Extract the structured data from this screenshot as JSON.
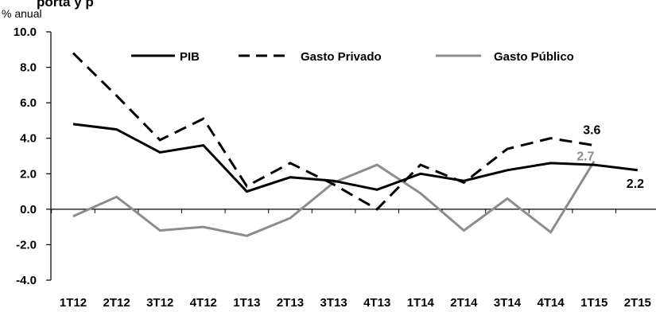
{
  "chart_data": {
    "type": "line",
    "title": "",
    "title_fragment": "porta y p",
    "ylabel": "% anual",
    "ylim": [
      -4.0,
      10.0
    ],
    "yticks": [
      "10.0",
      "8.0",
      "6.0",
      "4.0",
      "2.0",
      "0.0",
      "-2.0",
      "-4.0"
    ],
    "ytick_values": [
      10,
      8,
      6,
      4,
      2,
      0,
      -2,
      -4
    ],
    "categories": [
      "1T12",
      "2T12",
      "3T12",
      "4T12",
      "1T13",
      "2T13",
      "3T13",
      "4T13",
      "1T14",
      "2T14",
      "3T14",
      "4T14",
      "1T15",
      "2T15"
    ],
    "grid": false,
    "legend_position": "top",
    "series": [
      {
        "name": "PIB",
        "style": "solid",
        "color": "#000000",
        "values": [
          4.8,
          4.5,
          3.2,
          3.6,
          1.0,
          1.8,
          1.6,
          1.1,
          2.0,
          1.6,
          2.2,
          2.6,
          2.5,
          2.2
        ]
      },
      {
        "name": "Gasto Privado",
        "style": "dashed",
        "color": "#000000",
        "values": [
          8.8,
          6.4,
          3.9,
          5.1,
          1.3,
          2.6,
          1.4,
          0.0,
          2.5,
          1.5,
          3.4,
          4.0,
          3.6,
          null
        ]
      },
      {
        "name": "Gasto Público",
        "style": "solid",
        "color": "#8c8c8c",
        "values": [
          -0.4,
          0.7,
          -1.2,
          -1.0,
          -1.5,
          -0.5,
          1.5,
          2.5,
          0.9,
          -1.2,
          0.6,
          -1.3,
          2.7,
          null
        ]
      }
    ],
    "data_labels": [
      {
        "series": "Gasto Privado",
        "index": 12,
        "text": "3.6",
        "color": "#000000"
      },
      {
        "series": "Gasto Público",
        "index": 12,
        "text": "2.7",
        "color": "#8c8c8c"
      },
      {
        "series": "PIB",
        "index": 13,
        "text": "2.2",
        "color": "#000000"
      }
    ]
  }
}
